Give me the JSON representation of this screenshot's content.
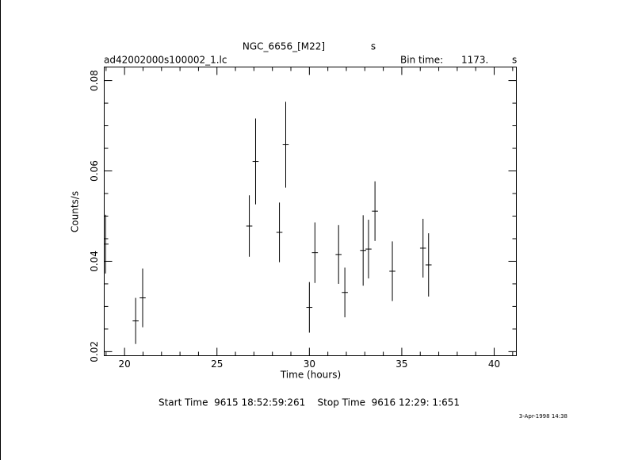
{
  "chart_data": {
    "type": "errorbar",
    "title": "NGC_6656_[M22]",
    "title_unit": "s",
    "subtitle": "ad42002000s100002_1.lc",
    "bin_time_label": "Bin time:",
    "bin_time": "1173.",
    "bin_time_unit": "s",
    "x_label": "Time (hours)",
    "y_label": "Counts/s",
    "footer": "Start Time  9615 18:52:59:261    Stop Time  9616 12:29: 1:651",
    "date": "3-Apr-1998 14:38",
    "xlim": [
      18.9,
      41.2
    ],
    "ylim": [
      0.0191,
      0.083
    ],
    "xticks": [
      20,
      25,
      30,
      35,
      40
    ],
    "xminorticks": [
      19,
      21,
      22,
      23,
      24,
      26,
      27,
      28,
      29,
      31,
      32,
      33,
      34,
      36,
      37,
      38,
      39,
      41
    ],
    "yticks": [
      0.02,
      0.04,
      0.06,
      0.08
    ],
    "yminorticks": [
      0.025,
      0.03,
      0.035,
      0.045,
      0.05,
      0.055,
      0.065,
      0.07,
      0.075
    ],
    "color": "#000000",
    "xerr": 0.163,
    "x": [
      18.97,
      20.6,
      20.98,
      26.75,
      27.09,
      28.38,
      28.72,
      30.0,
      30.3,
      31.58,
      31.92,
      32.91,
      33.2,
      33.55,
      34.49,
      36.15,
      36.45
    ],
    "values": [
      0.0438,
      0.0268,
      0.0319,
      0.0478,
      0.0621,
      0.0464,
      0.0658,
      0.0298,
      0.0419,
      0.0415,
      0.0331,
      0.0424,
      0.0427,
      0.0511,
      0.0378,
      0.0429,
      0.0392
    ],
    "yerr": [
      0.0065,
      0.0051,
      0.0065,
      0.0068,
      0.0095,
      0.0066,
      0.0095,
      0.0056,
      0.0067,
      0.0065,
      0.0055,
      0.0078,
      0.0065,
      0.0066,
      0.0066,
      0.0065,
      0.007
    ]
  }
}
